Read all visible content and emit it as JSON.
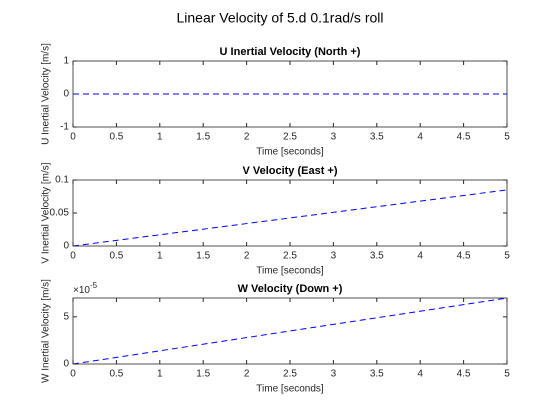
{
  "title": "Linear Velocity of 5.d 0.1rad/s roll",
  "chart_data": [
    {
      "type": "line",
      "title": "U Inertial Velocity (North +)",
      "xlabel": "Time [seconds]",
      "ylabel": "U Inertial Velocity [m/s]",
      "x": [
        0,
        5
      ],
      "series": [
        {
          "color": "#0000ff",
          "line_style": "dashed",
          "values": [
            0,
            0
          ]
        }
      ],
      "xlim": [
        0,
        5
      ],
      "xticks": [
        0,
        0.5,
        1,
        1.5,
        2,
        2.5,
        3,
        3.5,
        4,
        4.5,
        5
      ],
      "ylim": [
        -1,
        1
      ],
      "yticks": [
        -1,
        0,
        1
      ],
      "grid": false
    },
    {
      "type": "line",
      "title": "V Velocity (East +)",
      "xlabel": "Time [seconds]",
      "ylabel": "V Inertial Velocity [m/s]",
      "x": [
        0,
        5
      ],
      "series": [
        {
          "color": "#0000ff",
          "line_style": "dashed",
          "values": [
            0,
            0.085
          ]
        }
      ],
      "xlim": [
        0,
        5
      ],
      "xticks": [
        0,
        0.5,
        1,
        1.5,
        2,
        2.5,
        3,
        3.5,
        4,
        4.5,
        5
      ],
      "ylim": [
        0,
        0.1
      ],
      "yticks": [
        0,
        0.05,
        0.1
      ],
      "grid": false
    },
    {
      "type": "line",
      "title": "W Velocity (Down +)",
      "xlabel": "Time [seconds]",
      "ylabel": "W Inertial Velocity [m/s]",
      "x": [
        0,
        5
      ],
      "series": [
        {
          "color": "#0000ff",
          "line_style": "dashed",
          "values": [
            0,
            7e-05
          ]
        }
      ],
      "xlim": [
        0,
        5
      ],
      "xticks": [
        0,
        0.5,
        1,
        1.5,
        2,
        2.5,
        3,
        3.5,
        4,
        4.5,
        5
      ],
      "ylim": [
        0,
        7e-05
      ],
      "yticks": [
        0,
        {
          "value": 5e-05,
          "label": "5"
        }
      ],
      "y_multiplier": "×10",
      "y_multiplier_exponent": "-5",
      "grid": false
    }
  ]
}
